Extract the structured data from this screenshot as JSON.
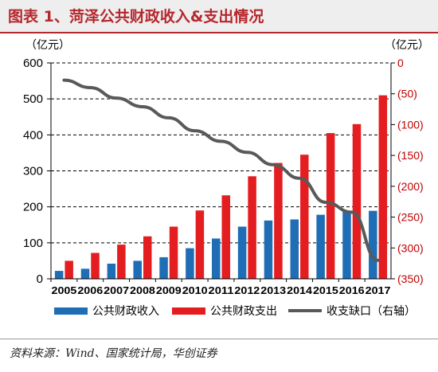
{
  "header": {
    "title": "图表 1、菏泽公共财政收入&支出情况"
  },
  "footer": {
    "source": "资料来源：Wind、国家统计局，华创证券"
  },
  "colors": {
    "revenue": "#1f6eb5",
    "expenditure": "#e41e20",
    "gap": "#595959",
    "title": "#b5272d",
    "right_axis_label": "#c00000"
  },
  "chart_data": {
    "type": "bar",
    "categories": [
      "2005",
      "2006",
      "2007",
      "2008",
      "2009",
      "2010",
      "2011",
      "2012",
      "2013",
      "2014",
      "2015",
      "2016",
      "2017"
    ],
    "series": [
      {
        "name": "公共财政收入",
        "type": "bar",
        "axis": "left",
        "values": [
          22,
          28,
          42,
          50,
          60,
          85,
          112,
          145,
          162,
          165,
          178,
          188,
          189
        ]
      },
      {
        "name": "公共财政支出",
        "type": "bar",
        "axis": "left",
        "values": [
          50,
          72,
          95,
          118,
          145,
          190,
          232,
          285,
          322,
          345,
          405,
          430,
          510
        ]
      },
      {
        "name": "收支缺口（右轴）",
        "type": "line",
        "axis": "right",
        "values": [
          -28,
          -40,
          -57,
          -71,
          -89,
          -110,
          -127,
          -145,
          -165,
          -187,
          -226,
          -242,
          -320
        ]
      }
    ],
    "left_axis": {
      "unit": "（亿元）",
      "min": 0,
      "max": 600,
      "ticks": [
        0,
        100,
        200,
        300,
        400,
        500,
        600
      ],
      "tick_labels": [
        "0",
        "100",
        "200",
        "300",
        "400",
        "500",
        "600"
      ]
    },
    "right_axis": {
      "unit": "（亿元）",
      "min": -350,
      "max": 0,
      "ticks": [
        0,
        -50,
        -100,
        -150,
        -200,
        -250,
        -300,
        -350
      ],
      "tick_labels": [
        "0",
        "(50)",
        "(100)",
        "(150)",
        "(200)",
        "(250)",
        "(300)",
        "(350)"
      ]
    },
    "grid": "horizontal dashed",
    "legend": "bottom"
  }
}
